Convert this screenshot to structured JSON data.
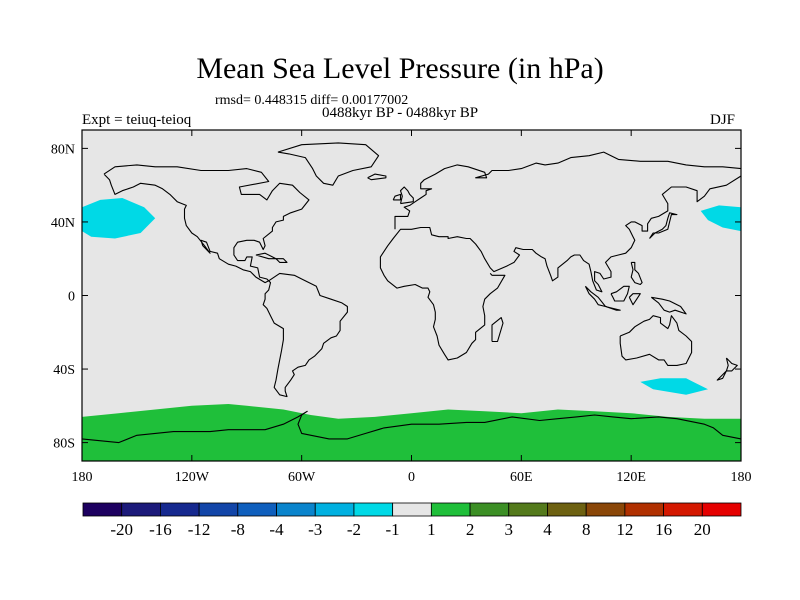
{
  "header": {
    "title": "Mean Sea Level Pressure (in hPa)",
    "stats": "rmsd= 0.448315 diff= 0.00177002",
    "period": "0488kyr BP - 0488kyr BP",
    "experiment": "Expt = teiuq-teioq",
    "season": "DJF"
  },
  "chart_data": {
    "type": "heatmap",
    "projection": "cylindrical-equidistant",
    "title": "Mean Sea Level Pressure (in hPa)",
    "subtitle": "rmsd= 0.448315 diff= 0.00177002",
    "xlim": [
      -180,
      180
    ],
    "ylim": [
      -90,
      90
    ],
    "x_ticks": [
      {
        "value": -180,
        "label": "180"
      },
      {
        "value": -120,
        "label": "120W"
      },
      {
        "value": -60,
        "label": "60W"
      },
      {
        "value": 0,
        "label": "0"
      },
      {
        "value": 60,
        "label": "60E"
      },
      {
        "value": 120,
        "label": "120E"
      },
      {
        "value": 180,
        "label": "180"
      }
    ],
    "y_ticks": [
      {
        "value": 80,
        "label": "80N"
      },
      {
        "value": 40,
        "label": "40N"
      },
      {
        "value": 0,
        "label": "0"
      },
      {
        "value": -40,
        "label": "40S"
      },
      {
        "value": -80,
        "label": "80S"
      }
    ],
    "background_bin": {
      "range": [
        -1,
        1
      ],
      "color": "#e6e6e6"
    },
    "regions": [
      {
        "name": "North Pacific east low",
        "bin": [
          -2,
          -1
        ],
        "color": "#00d9e6",
        "lonlat": [
          [
            -180,
            35
          ],
          [
            -180,
            48
          ],
          [
            -170,
            52
          ],
          [
            -158,
            53
          ],
          [
            -146,
            48
          ],
          [
            -140,
            42
          ],
          [
            -148,
            34
          ],
          [
            -162,
            31
          ],
          [
            -175,
            32
          ]
        ]
      },
      {
        "name": "North Pacific west low",
        "bin": [
          -2,
          -1
        ],
        "color": "#00d9e6",
        "lonlat": [
          [
            180,
            35
          ],
          [
            180,
            48
          ],
          [
            168,
            49
          ],
          [
            158,
            46
          ],
          [
            162,
            41
          ],
          [
            170,
            37
          ]
        ]
      },
      {
        "name": "South Pacific low",
        "bin": [
          -2,
          -1
        ],
        "color": "#00d9e6",
        "lonlat": [
          [
            125,
            -47
          ],
          [
            136,
            -45
          ],
          [
            150,
            -45
          ],
          [
            162,
            -51
          ],
          [
            150,
            -54
          ],
          [
            132,
            -51
          ]
        ]
      },
      {
        "name": "Southern Ocean high",
        "bin": [
          1,
          2
        ],
        "color": "#1fbf3a",
        "lonlat": [
          [
            -180,
            -66
          ],
          [
            -160,
            -64
          ],
          [
            -140,
            -62
          ],
          [
            -120,
            -60
          ],
          [
            -100,
            -59
          ],
          [
            -90,
            -60
          ],
          [
            -70,
            -62
          ],
          [
            -55,
            -65
          ],
          [
            -40,
            -67
          ],
          [
            -20,
            -66
          ],
          [
            0,
            -64
          ],
          [
            20,
            -62
          ],
          [
            40,
            -63
          ],
          [
            60,
            -64
          ],
          [
            80,
            -62
          ],
          [
            100,
            -63
          ],
          [
            120,
            -64
          ],
          [
            140,
            -66
          ],
          [
            160,
            -67
          ],
          [
            180,
            -67
          ],
          [
            180,
            -90
          ],
          [
            -180,
            -90
          ]
        ]
      }
    ],
    "colorbar": {
      "labels": [
        "-20",
        "-16",
        "-12",
        "-8",
        "-4",
        "-3",
        "-2",
        "-1",
        "1",
        "2",
        "3",
        "4",
        "8",
        "12",
        "16",
        "20"
      ],
      "colors": [
        "#1d0060",
        "#1c1a7a",
        "#16298f",
        "#1245a8",
        "#0f5fbd",
        "#0a84cc",
        "#00b0e0",
        "#00d9e6",
        "#e6e6e6",
        "#1fbf3a",
        "#3c8f25",
        "#547a1c",
        "#6d6111",
        "#8a4708",
        "#b03000",
        "#d41800",
        "#e50000"
      ]
    }
  }
}
